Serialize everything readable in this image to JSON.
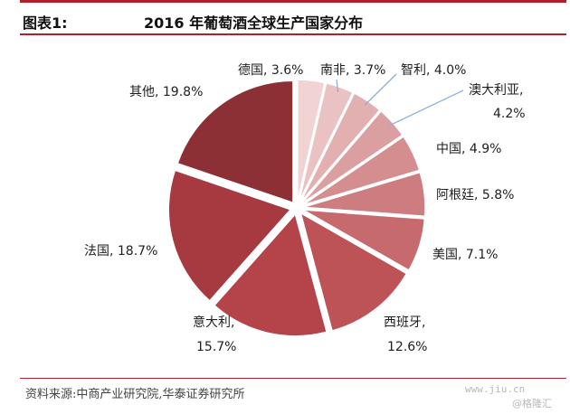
{
  "header": {
    "figure_prefix": "图表1:",
    "title": "2016 年葡萄酒全球生产国家分布"
  },
  "chart_data": {
    "type": "pie",
    "title": "2016 年葡萄酒全球生产国家分布",
    "slices": [
      {
        "name": "德国",
        "value": 3.6,
        "label": "德国, 3.6%",
        "color": "#f1d3d3"
      },
      {
        "name": "南非",
        "value": 3.7,
        "label": "南非, 3.7%",
        "color": "#eac2c3"
      },
      {
        "name": "智利",
        "value": 4.0,
        "label": "智利, 4.0%",
        "color": "#e3b0b1"
      },
      {
        "name": "澳大利亚",
        "value": 4.2,
        "label_line1": "澳大利亚,",
        "label_line2": "4.2%",
        "color": "#dc9fa1"
      },
      {
        "name": "中国",
        "value": 4.9,
        "label": "中国, 4.9%",
        "color": "#d58e90"
      },
      {
        "name": "阿根廷",
        "value": 5.8,
        "label": "阿根廷, 5.8%",
        "color": "#cd7c7f"
      },
      {
        "name": "美国",
        "value": 7.1,
        "label": "美国, 7.1%",
        "color": "#c66a6e"
      },
      {
        "name": "西班牙",
        "value": 12.6,
        "label_line1": "西班牙,",
        "label_line2": "12.6%",
        "color": "#bd5257"
      },
      {
        "name": "意大利",
        "value": 15.7,
        "label_line1": "意大利,",
        "label_line2": "15.7%",
        "color": "#b4434a"
      },
      {
        "name": "法国",
        "value": 18.7,
        "label": "法国, 18.7%",
        "color": "#a63a40"
      },
      {
        "name": "其他",
        "value": 19.8,
        "label": "其他, 19.8%",
        "color": "#8c3035"
      }
    ]
  },
  "footer": {
    "source": "资料来源:中商产业研究院,华泰证券研究所"
  },
  "watermark": {
    "site": "www.jiu.cn",
    "brand": "@格隆汇"
  }
}
